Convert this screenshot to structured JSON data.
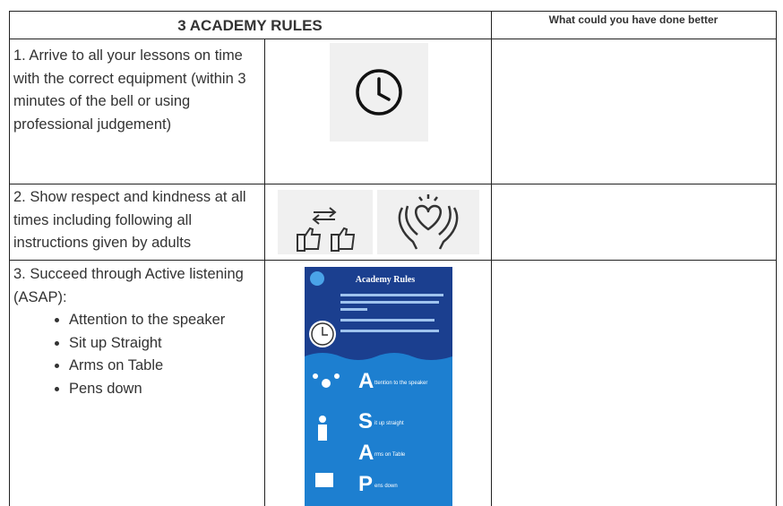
{
  "header": {
    "rules_title": "3 ACADEMY RULES",
    "reflection_title": "What could you have done better"
  },
  "rules": [
    {
      "text": "1. Arrive to all your lessons on time with the correct equipment (within 3 minutes of the bell or using professional judgement)"
    },
    {
      "text": "2. Show respect and kindness at all times including following all instructions given by adults"
    },
    {
      "text": "3. Succeed through Active listening (ASAP):",
      "bullets": [
        "Attention to the speaker",
        "Sit up Straight",
        "Arms on Table",
        "Pens down"
      ]
    }
  ],
  "poster": {
    "title": "Academy Rules",
    "items": [
      {
        "letter": "A",
        "text": "ttention to the speaker"
      },
      {
        "letter": "S",
        "text": "it up straight"
      },
      {
        "letter": "A",
        "text": "rms on Table"
      },
      {
        "letter": "P",
        "text": "ens down"
      }
    ]
  }
}
